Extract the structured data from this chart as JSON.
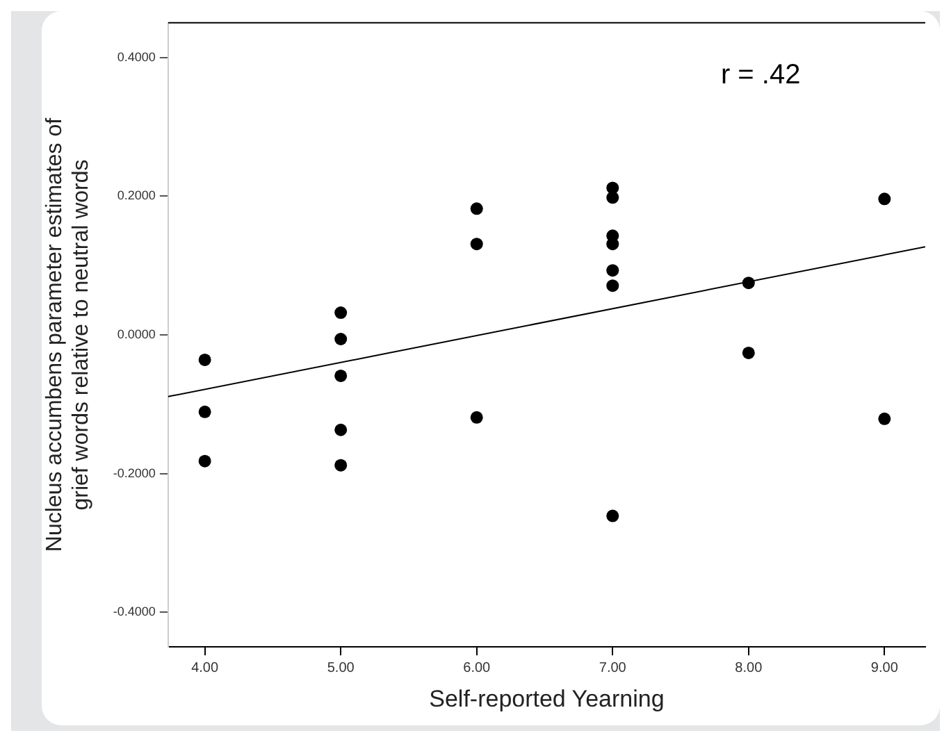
{
  "chart_data": {
    "type": "scatter",
    "xlabel": "Self-reported Yearning",
    "ylabel": "Nucleus accumbens parameter estimates of grief words relative to neutral words",
    "annotations": [
      "r = .42"
    ],
    "xlim": [
      3.73,
      9.3
    ],
    "ylim": [
      -0.45,
      0.45
    ],
    "xticks": [
      {
        "value": 4,
        "label": "4.00"
      },
      {
        "value": 5,
        "label": "5.00"
      },
      {
        "value": 6,
        "label": "6.00"
      },
      {
        "value": 7,
        "label": "7.00"
      },
      {
        "value": 8,
        "label": "8.00"
      },
      {
        "value": 9,
        "label": "9.00"
      }
    ],
    "yticks": [
      {
        "value": -0.4,
        "label": "-0.4000"
      },
      {
        "value": -0.2,
        "label": "-0.2000"
      },
      {
        "value": 0,
        "label": "0.0000"
      },
      {
        "value": 0.2,
        "label": "0.2000"
      },
      {
        "value": 0.4,
        "label": "0.4000"
      }
    ],
    "grid": false,
    "legend": false,
    "marker": "circle",
    "series": [
      {
        "type": "scatter",
        "color": "#000000",
        "x": [
          4,
          4,
          4,
          5,
          5,
          5,
          5,
          5,
          6,
          6,
          6,
          7,
          7,
          7,
          7,
          7,
          7,
          7,
          8,
          8,
          9,
          9
        ],
        "values": [
          -0.036,
          -0.111,
          -0.182,
          0.032,
          -0.006,
          -0.059,
          -0.137,
          -0.188,
          0.182,
          0.131,
          -0.119,
          0.212,
          0.198,
          0.143,
          0.131,
          0.093,
          0.071,
          -0.261,
          0.075,
          -0.026,
          0.196,
          -0.121
        ]
      },
      {
        "type": "line",
        "color": "#000000",
        "line_style": "solid",
        "marker": "none",
        "x": [
          3.73,
          9.3
        ],
        "values": [
          -0.089,
          0.127
        ]
      }
    ]
  }
}
